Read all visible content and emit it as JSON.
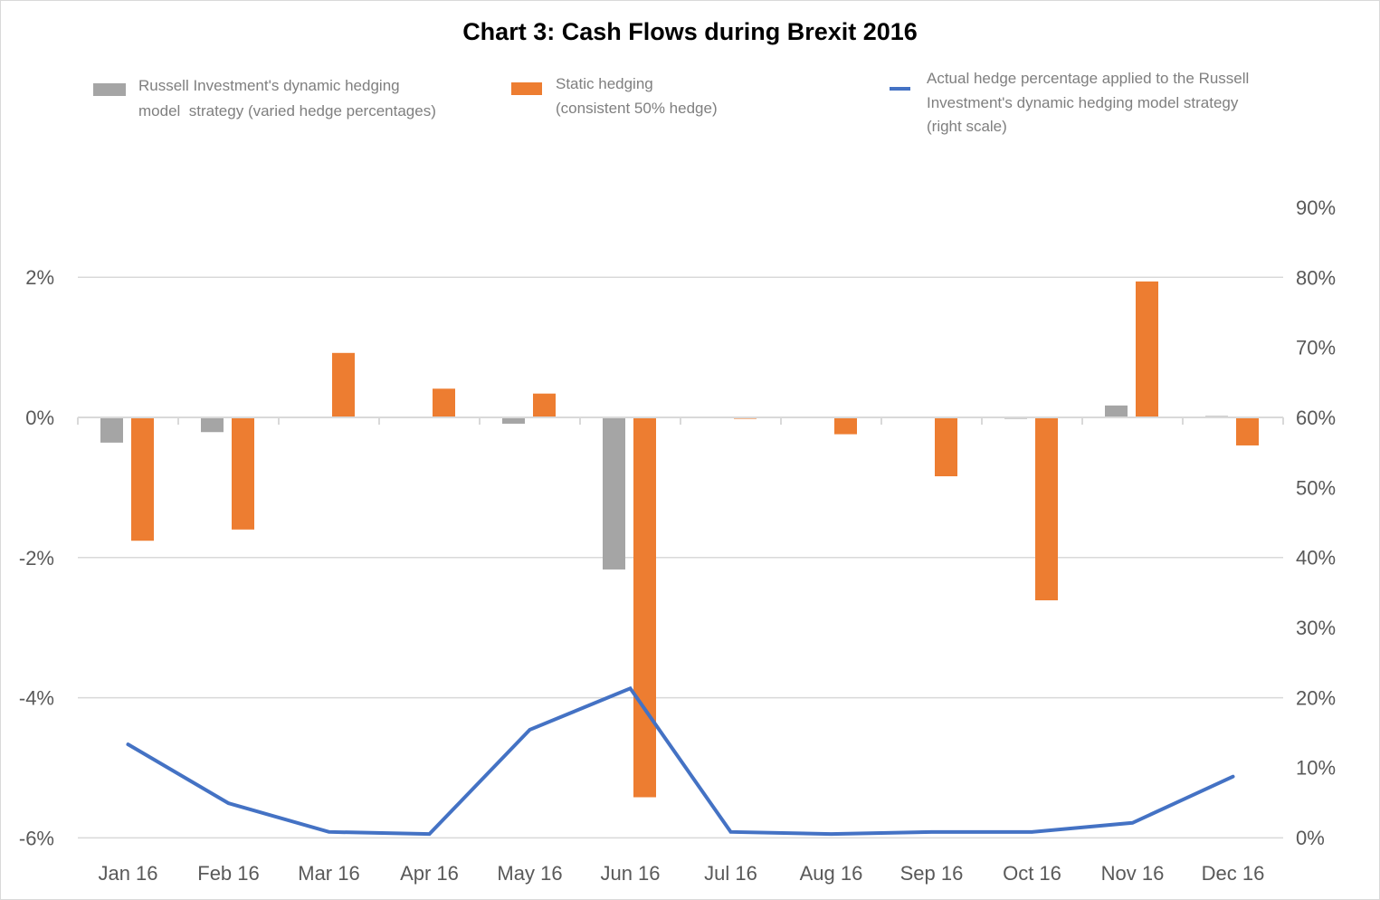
{
  "chart_data": {
    "type": "bar",
    "title": "Chart 3: Cash Flows during Brexit 2016",
    "categories": [
      "Jan 16",
      "Feb 16",
      "Mar 16",
      "Apr 16",
      "May 16",
      "Jun 16",
      "Jul 16",
      "Aug 16",
      "Sep 16",
      "Oct 16",
      "Nov 16",
      "Dec 16"
    ],
    "series": [
      {
        "name": "Russell Investment's dynamic hedging model  strategy (varied hedge percentages)",
        "legend_lines": [
          "Russell Investment's dynamic hedging",
          "model  strategy (varied hedge percentages)"
        ],
        "type": "bar",
        "axis": "left",
        "color": "#a5a5a5",
        "values": [
          -0.36,
          -0.21,
          0.0,
          0.0,
          -0.09,
          -2.17,
          0.0,
          0.0,
          0.0,
          -0.02,
          0.17,
          0.02
        ]
      },
      {
        "name": "Static hedging (consistent 50% hedge)",
        "legend_lines": [
          "Static hedging",
          "(consistent 50% hedge)"
        ],
        "type": "bar",
        "axis": "left",
        "color": "#ed7d31",
        "values": [
          -1.76,
          -1.6,
          0.92,
          0.41,
          0.34,
          -5.42,
          -0.02,
          -0.24,
          -0.84,
          -2.61,
          1.94,
          -0.4
        ]
      },
      {
        "name": "Actual hedge percentage applied to the Russell Investment's dynamic hedging model strategy (right scale)",
        "legend_lines": [
          "Actual hedge percentage applied to the Russell",
          "Investment's dynamic hedging model strategy",
          "(right scale)"
        ],
        "type": "line",
        "axis": "right",
        "color": "#4472c4",
        "values": [
          13.3,
          4.9,
          0.8,
          0.5,
          15.4,
          21.3,
          0.8,
          0.5,
          0.8,
          0.8,
          2.1,
          8.7
        ]
      }
    ],
    "left_axis": {
      "unit": "%",
      "ylim": [
        -6,
        3
      ],
      "ticks": [
        2,
        0,
        -2,
        -4,
        -6
      ],
      "tick_labels": [
        "2%",
        "0%",
        "-2%",
        "-4%",
        "-6%"
      ]
    },
    "right_axis": {
      "unit": "%",
      "ylim": [
        0,
        90
      ],
      "ticks": [
        90,
        80,
        70,
        60,
        50,
        40,
        30,
        20,
        10,
        0
      ],
      "tick_labels": [
        "90%",
        "80%",
        "70%",
        "60%",
        "50%",
        "40%",
        "30%",
        "20%",
        "10%",
        "0%"
      ]
    },
    "xlabel": "",
    "ylabel": "",
    "grid": true,
    "legend_position": "top"
  }
}
